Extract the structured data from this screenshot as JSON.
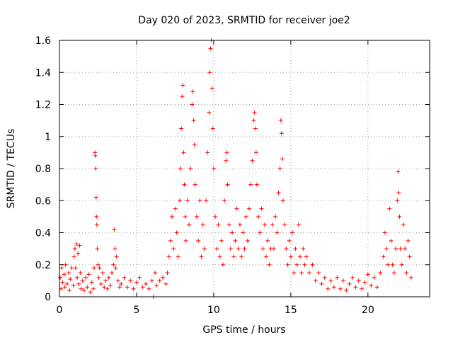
{
  "chart_data": {
    "type": "scatter",
    "title": "Day 020 of 2023, SRMTID for receiver joe2",
    "xlabel": "GPS time / hours",
    "ylabel": "SRMTID / TECUs",
    "xlim": [
      0,
      24
    ],
    "ylim": [
      0,
      1.6
    ],
    "xticks": [
      0,
      5,
      10,
      15,
      20
    ],
    "yticks": [
      0,
      0.2,
      0.4,
      0.6,
      0.8,
      1,
      1.2,
      1.4,
      1.6
    ],
    "xtick_labels": [
      "0",
      "5",
      "10",
      "15",
      "20"
    ],
    "ytick_labels": [
      "0",
      "0.2",
      "0.4",
      "0.6",
      "0.8",
      "1",
      "1.2",
      "1.4",
      "1.6"
    ],
    "grid": true,
    "marker": "+",
    "color": "#ff0000",
    "series": [
      {
        "name": "SRMTID",
        "points": [
          [
            0.05,
            0.12
          ],
          [
            0.1,
            0.05
          ],
          [
            0.15,
            0.18
          ],
          [
            0.2,
            0.09
          ],
          [
            0.3,
            0.14
          ],
          [
            0.35,
            0.06
          ],
          [
            0.4,
            0.2
          ],
          [
            0.5,
            0.08
          ],
          [
            0.6,
            0.15
          ],
          [
            0.65,
            0.04
          ],
          [
            0.7,
            0.11
          ],
          [
            0.8,
            0.18
          ],
          [
            0.9,
            0.07
          ],
          [
            0.95,
            0.25
          ],
          [
            1.0,
            0.3
          ],
          [
            1.05,
            0.18
          ],
          [
            1.1,
            0.33
          ],
          [
            1.15,
            0.12
          ],
          [
            1.2,
            0.27
          ],
          [
            1.25,
            0.08
          ],
          [
            1.3,
            0.32
          ],
          [
            1.35,
            0.15
          ],
          [
            1.4,
            0.05
          ],
          [
            1.5,
            0.1
          ],
          [
            1.6,
            0.04
          ],
          [
            1.7,
            0.12
          ],
          [
            1.8,
            0.06
          ],
          [
            1.9,
            0.14
          ],
          [
            2.0,
            0.03
          ],
          [
            2.1,
            0.09
          ],
          [
            2.2,
            0.05
          ],
          [
            2.25,
            0.18
          ],
          [
            2.3,
            0.9
          ],
          [
            2.32,
            0.88
          ],
          [
            2.35,
            0.8
          ],
          [
            2.38,
            0.62
          ],
          [
            2.4,
            0.5
          ],
          [
            2.42,
            0.45
          ],
          [
            2.45,
            0.3
          ],
          [
            2.5,
            0.2
          ],
          [
            2.55,
            0.12
          ],
          [
            2.6,
            0.18
          ],
          [
            2.7,
            0.08
          ],
          [
            2.8,
            0.15
          ],
          [
            2.9,
            0.06
          ],
          [
            3.0,
            0.1
          ],
          [
            3.1,
            0.05
          ],
          [
            3.2,
            0.12
          ],
          [
            3.3,
            0.07
          ],
          [
            3.4,
            0.15
          ],
          [
            3.5,
            0.2
          ],
          [
            3.55,
            0.42
          ],
          [
            3.6,
            0.3
          ],
          [
            3.65,
            0.18
          ],
          [
            3.7,
            0.25
          ],
          [
            3.8,
            0.1
          ],
          [
            3.9,
            0.06
          ],
          [
            4.0,
            0.08
          ],
          [
            4.2,
            0.12
          ],
          [
            4.4,
            0.06
          ],
          [
            4.6,
            0.1
          ],
          [
            4.8,
            0.05
          ],
          [
            5.0,
            0.09
          ],
          [
            5.2,
            0.12
          ],
          [
            5.4,
            0.06
          ],
          [
            5.6,
            0.08
          ],
          [
            5.8,
            0.05
          ],
          [
            6.0,
            0.1
          ],
          [
            6.2,
            0.15
          ],
          [
            6.1,
            0.0
          ],
          [
            6.3,
            0.07
          ],
          [
            6.5,
            0.1
          ],
          [
            6.7,
            0.12
          ],
          [
            6.9,
            0.08
          ],
          [
            7.0,
            0.15
          ],
          [
            7.1,
            0.25
          ],
          [
            7.2,
            0.35
          ],
          [
            7.3,
            0.5
          ],
          [
            7.4,
            0.3
          ],
          [
            7.5,
            0.55
          ],
          [
            7.6,
            0.4
          ],
          [
            7.7,
            0.25
          ],
          [
            7.8,
            0.6
          ],
          [
            7.85,
            0.8
          ],
          [
            7.9,
            1.05
          ],
          [
            7.95,
            1.25
          ],
          [
            8.0,
            1.32
          ],
          [
            8.05,
            0.9
          ],
          [
            8.1,
            0.7
          ],
          [
            8.15,
            0.5
          ],
          [
            8.2,
            0.35
          ],
          [
            8.3,
            0.6
          ],
          [
            8.4,
            0.45
          ],
          [
            8.5,
            0.8
          ],
          [
            8.6,
            1.2
          ],
          [
            8.65,
            1.28
          ],
          [
            8.7,
            1.1
          ],
          [
            8.75,
            0.95
          ],
          [
            8.8,
            0.7
          ],
          [
            8.9,
            0.5
          ],
          [
            9.0,
            0.35
          ],
          [
            9.1,
            0.6
          ],
          [
            9.2,
            0.25
          ],
          [
            9.3,
            0.45
          ],
          [
            9.4,
            0.3
          ],
          [
            9.5,
            0.6
          ],
          [
            9.6,
            0.9
          ],
          [
            9.7,
            1.15
          ],
          [
            9.75,
            1.4
          ],
          [
            9.8,
            1.55
          ],
          [
            9.85,
            1.6
          ],
          [
            9.9,
            1.3
          ],
          [
            9.95,
            1.05
          ],
          [
            10.0,
            0.8
          ],
          [
            10.1,
            0.5
          ],
          [
            10.2,
            0.3
          ],
          [
            10.3,
            0.45
          ],
          [
            10.4,
            0.25
          ],
          [
            10.5,
            0.35
          ],
          [
            10.6,
            0.2
          ],
          [
            10.7,
            0.6
          ],
          [
            10.8,
            0.85
          ],
          [
            10.85,
            0.9
          ],
          [
            10.9,
            0.7
          ],
          [
            11.0,
            0.45
          ],
          [
            11.1,
            0.3
          ],
          [
            11.2,
            0.4
          ],
          [
            11.3,
            0.25
          ],
          [
            11.4,
            0.35
          ],
          [
            11.5,
            0.55
          ],
          [
            11.6,
            0.3
          ],
          [
            11.7,
            0.45
          ],
          [
            11.8,
            0.25
          ],
          [
            11.9,
            0.4
          ],
          [
            12.0,
            0.3
          ],
          [
            12.1,
            0.5
          ],
          [
            12.2,
            0.35
          ],
          [
            12.3,
            0.55
          ],
          [
            12.4,
            0.7
          ],
          [
            12.5,
            0.85
          ],
          [
            12.6,
            1.1
          ],
          [
            12.65,
            1.15
          ],
          [
            12.7,
            1.05
          ],
          [
            12.75,
            0.9
          ],
          [
            12.8,
            0.7
          ],
          [
            12.9,
            0.5
          ],
          [
            13.0,
            0.4
          ],
          [
            13.1,
            0.55
          ],
          [
            13.2,
            0.3
          ],
          [
            13.3,
            0.45
          ],
          [
            13.4,
            0.25
          ],
          [
            13.5,
            0.35
          ],
          [
            13.6,
            0.2
          ],
          [
            13.7,
            0.3
          ],
          [
            13.8,
            0.45
          ],
          [
            13.9,
            0.3
          ],
          [
            14.0,
            0.5
          ],
          [
            14.1,
            0.4
          ],
          [
            14.2,
            0.65
          ],
          [
            14.3,
            0.8
          ],
          [
            14.35,
            1.1
          ],
          [
            14.4,
            1.02
          ],
          [
            14.45,
            0.86
          ],
          [
            14.5,
            0.6
          ],
          [
            14.6,
            0.45
          ],
          [
            14.7,
            0.3
          ],
          [
            14.8,
            0.2
          ],
          [
            14.9,
            0.35
          ],
          [
            15.0,
            0.25
          ],
          [
            15.1,
            0.4
          ],
          [
            15.2,
            0.15
          ],
          [
            15.3,
            0.3
          ],
          [
            15.4,
            0.2
          ],
          [
            15.5,
            0.45
          ],
          [
            15.6,
            0.25
          ],
          [
            15.7,
            0.15
          ],
          [
            15.8,
            0.3
          ],
          [
            15.9,
            0.2
          ],
          [
            16.0,
            0.25
          ],
          [
            16.2,
            0.15
          ],
          [
            16.4,
            0.2
          ],
          [
            16.6,
            0.1
          ],
          [
            16.8,
            0.15
          ],
          [
            17.0,
            0.08
          ],
          [
            17.2,
            0.12
          ],
          [
            17.4,
            0.05
          ],
          [
            17.6,
            0.1
          ],
          [
            17.8,
            0.06
          ],
          [
            18.0,
            0.12
          ],
          [
            18.2,
            0.05
          ],
          [
            18.4,
            0.1
          ],
          [
            18.6,
            0.04
          ],
          [
            18.8,
            0.08
          ],
          [
            19.0,
            0.12
          ],
          [
            19.2,
            0.06
          ],
          [
            19.4,
            0.1
          ],
          [
            19.6,
            0.05
          ],
          [
            19.8,
            0.09
          ],
          [
            20.0,
            0.14
          ],
          [
            20.2,
            0.07
          ],
          [
            20.4,
            0.12
          ],
          [
            20.6,
            0.06
          ],
          [
            20.8,
            0.15
          ],
          [
            21.0,
            0.25
          ],
          [
            21.1,
            0.4
          ],
          [
            21.2,
            0.3
          ],
          [
            21.3,
            0.2
          ],
          [
            21.4,
            0.55
          ],
          [
            21.5,
            0.35
          ],
          [
            21.6,
            0.2
          ],
          [
            21.7,
            0.15
          ],
          [
            21.8,
            0.3
          ],
          [
            21.9,
            0.6
          ],
          [
            21.95,
            0.78
          ],
          [
            22.0,
            0.65
          ],
          [
            22.05,
            0.5
          ],
          [
            22.1,
            0.3
          ],
          [
            22.2,
            0.2
          ],
          [
            22.3,
            0.45
          ],
          [
            22.4,
            0.3
          ],
          [
            22.5,
            0.15
          ],
          [
            22.6,
            0.35
          ],
          [
            22.7,
            0.25
          ],
          [
            22.8,
            0.12
          ]
        ]
      }
    ]
  }
}
